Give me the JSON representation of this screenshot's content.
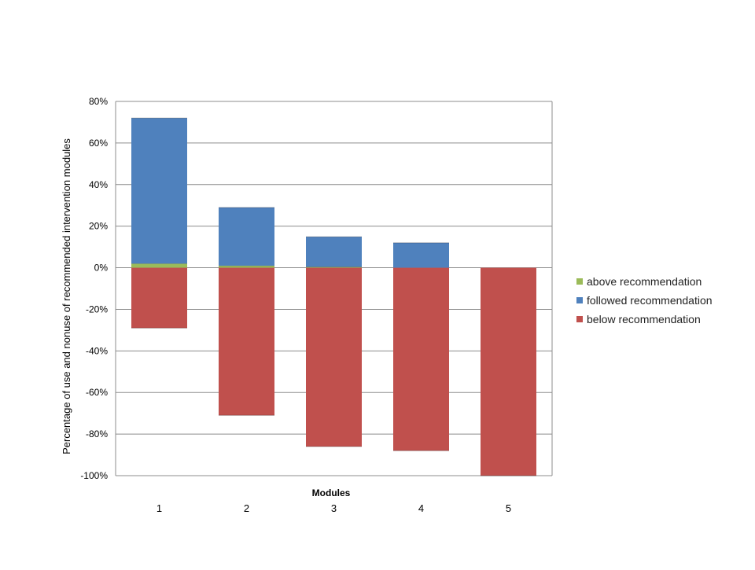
{
  "chart_data": {
    "type": "bar",
    "stacked": true,
    "title": "",
    "xlabel": "Modules",
    "ylabel": "Percentage of use and nonuse of recommended intervention modules",
    "categories": [
      "1",
      "2",
      "3",
      "4",
      "5"
    ],
    "ylim": [
      -100,
      80
    ],
    "yticks": [
      80,
      60,
      40,
      20,
      0,
      -20,
      -40,
      -60,
      -80,
      -100
    ],
    "ytick_labels": [
      "80%",
      "60%",
      "40%",
      "20%",
      "0%",
      "-20%",
      "-40%",
      "-60%",
      "-80%",
      "-100%"
    ],
    "grid": true,
    "legend_position": "right",
    "series": [
      {
        "name": "above recommendation",
        "color": "#9BBB59",
        "values": [
          2,
          1,
          0.4,
          0,
          0
        ]
      },
      {
        "name": "followed recommendation",
        "color": "#4F81BD",
        "values": [
          70,
          28,
          14.5,
          12,
          0
        ]
      },
      {
        "name": "below recommendation",
        "color": "#C0504D",
        "values": [
          -29,
          -71,
          -86,
          -88,
          -100
        ]
      }
    ]
  }
}
